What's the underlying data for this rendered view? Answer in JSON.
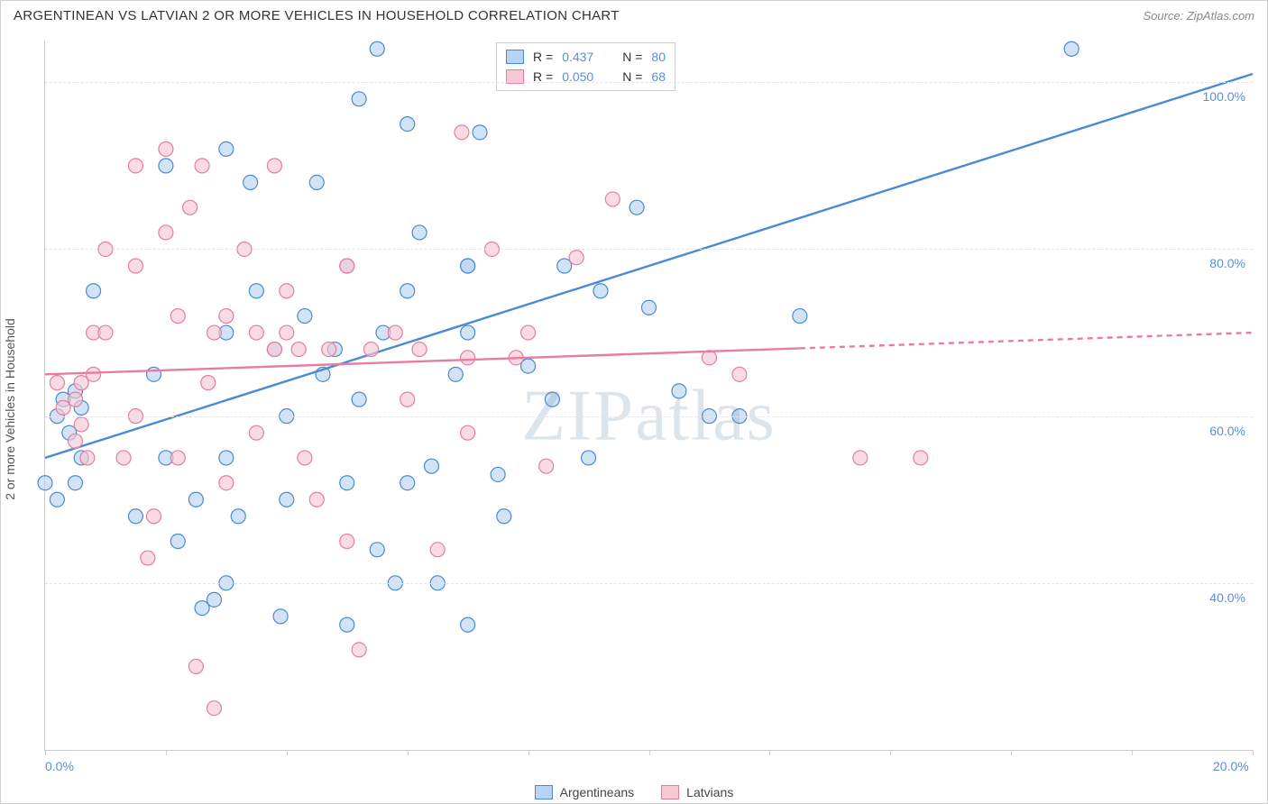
{
  "title": "ARGENTINEAN VS LATVIAN 2 OR MORE VEHICLES IN HOUSEHOLD CORRELATION CHART",
  "source": "Source: ZipAtlas.com",
  "y_axis_label": "2 or more Vehicles in Household",
  "watermark": "ZIPatlas",
  "chart": {
    "type": "scatter",
    "xlim": [
      0,
      20
    ],
    "ylim": [
      20,
      105
    ],
    "x_ticks": [
      0,
      2,
      4,
      6,
      8,
      10,
      12,
      14,
      16,
      18,
      20
    ],
    "x_tick_labels": {
      "0": "0.0%",
      "20": "20.0%"
    },
    "y_ticks": [
      40,
      60,
      80,
      100
    ],
    "y_tick_labels": [
      "40.0%",
      "60.0%",
      "80.0%",
      "100.0%"
    ],
    "grid_color": "#e5e5e5",
    "background_color": "#ffffff",
    "axis_color": "#cccccc",
    "tick_label_color": "#5a8fd8",
    "series": [
      {
        "name": "Argentineans",
        "fill": "#b8d4f0",
        "stroke": "#4a8ad4",
        "fill_opacity": 0.65,
        "marker_r": 8,
        "points": [
          [
            0.2,
            60
          ],
          [
            0.3,
            62
          ],
          [
            0.4,
            58
          ],
          [
            0.5,
            63
          ],
          [
            0.6,
            61
          ],
          [
            0.5,
            52
          ],
          [
            0.6,
            55
          ],
          [
            0.2,
            50
          ],
          [
            0.0,
            52
          ],
          [
            0.8,
            75
          ],
          [
            1.5,
            48
          ],
          [
            1.8,
            65
          ],
          [
            2.0,
            90
          ],
          [
            2.0,
            55
          ],
          [
            2.2,
            45
          ],
          [
            2.5,
            50
          ],
          [
            2.6,
            37
          ],
          [
            2.8,
            38
          ],
          [
            3.0,
            92
          ],
          [
            3.0,
            70
          ],
          [
            3.0,
            55
          ],
          [
            3.0,
            40
          ],
          [
            3.2,
            48
          ],
          [
            3.4,
            88
          ],
          [
            3.5,
            75
          ],
          [
            3.8,
            68
          ],
          [
            3.9,
            36
          ],
          [
            4.0,
            60
          ],
          [
            4.0,
            50
          ],
          [
            4.3,
            72
          ],
          [
            4.5,
            88
          ],
          [
            4.6,
            65
          ],
          [
            4.8,
            68
          ],
          [
            5.0,
            35
          ],
          [
            5.0,
            78
          ],
          [
            5.0,
            52
          ],
          [
            5.2,
            98
          ],
          [
            5.2,
            62
          ],
          [
            5.5,
            44
          ],
          [
            5.5,
            104
          ],
          [
            5.6,
            70
          ],
          [
            5.8,
            40
          ],
          [
            6.0,
            75
          ],
          [
            6.0,
            52
          ],
          [
            6.0,
            95
          ],
          [
            6.2,
            82
          ],
          [
            6.4,
            54
          ],
          [
            6.5,
            40
          ],
          [
            6.8,
            65
          ],
          [
            7.0,
            78
          ],
          [
            7.0,
            78
          ],
          [
            7.0,
            70
          ],
          [
            7.0,
            35
          ],
          [
            7.2,
            94
          ],
          [
            7.5,
            53
          ],
          [
            7.6,
            48
          ],
          [
            8.0,
            66
          ],
          [
            8.4,
            62
          ],
          [
            8.6,
            78
          ],
          [
            9.0,
            55
          ],
          [
            9.2,
            75
          ],
          [
            9.8,
            85
          ],
          [
            10.0,
            73
          ],
          [
            10.5,
            63
          ],
          [
            11.0,
            60
          ],
          [
            11.5,
            60
          ],
          [
            12.5,
            72
          ],
          [
            17.0,
            104
          ]
        ],
        "trend": {
          "x1": 0,
          "y1": 55,
          "x2": 20,
          "y2": 101,
          "solid_until_x": 20
        }
      },
      {
        "name": "Latvians",
        "fill": "#f5c8d4",
        "stroke": "#e87ca0",
        "fill_opacity": 0.65,
        "marker_r": 8,
        "points": [
          [
            0.2,
            64
          ],
          [
            0.3,
            61
          ],
          [
            0.5,
            57
          ],
          [
            0.5,
            62
          ],
          [
            0.6,
            59
          ],
          [
            0.6,
            64
          ],
          [
            0.8,
            70
          ],
          [
            0.8,
            65
          ],
          [
            0.7,
            55
          ],
          [
            1.0,
            80
          ],
          [
            1.0,
            70
          ],
          [
            1.3,
            55
          ],
          [
            1.5,
            90
          ],
          [
            1.5,
            78
          ],
          [
            1.5,
            60
          ],
          [
            1.7,
            43
          ],
          [
            1.8,
            48
          ],
          [
            2.0,
            92
          ],
          [
            2.0,
            82
          ],
          [
            2.2,
            72
          ],
          [
            2.2,
            55
          ],
          [
            2.4,
            85
          ],
          [
            2.5,
            30
          ],
          [
            2.6,
            90
          ],
          [
            2.7,
            64
          ],
          [
            2.8,
            70
          ],
          [
            2.8,
            25
          ],
          [
            3.0,
            72
          ],
          [
            3.0,
            52
          ],
          [
            3.3,
            80
          ],
          [
            3.5,
            70
          ],
          [
            3.5,
            58
          ],
          [
            3.8,
            68
          ],
          [
            3.8,
            90
          ],
          [
            4.0,
            75
          ],
          [
            4.3,
            55
          ],
          [
            4.0,
            70
          ],
          [
            4.2,
            68
          ],
          [
            4.5,
            50
          ],
          [
            4.7,
            68
          ],
          [
            5.0,
            78
          ],
          [
            5.0,
            45
          ],
          [
            5.2,
            32
          ],
          [
            5.4,
            68
          ],
          [
            5.8,
            70
          ],
          [
            6.0,
            62
          ],
          [
            6.2,
            68
          ],
          [
            6.5,
            44
          ],
          [
            6.9,
            94
          ],
          [
            7.0,
            58
          ],
          [
            7.0,
            67
          ],
          [
            7.4,
            80
          ],
          [
            7.8,
            67
          ],
          [
            8.0,
            70
          ],
          [
            8.3,
            54
          ],
          [
            8.8,
            79
          ],
          [
            9.4,
            86
          ],
          [
            11.0,
            67
          ],
          [
            11.5,
            65
          ],
          [
            13.5,
            55
          ],
          [
            14.5,
            55
          ]
        ],
        "trend": {
          "x1": 0,
          "y1": 65,
          "x2": 20,
          "y2": 70,
          "solid_until_x": 12.5
        }
      }
    ]
  },
  "legend_top": [
    {
      "swatch_fill": "#b8d4f0",
      "swatch_stroke": "#4a8ad4",
      "r_label": "R =",
      "r_val": "0.437",
      "n_label": "N =",
      "n_val": "80"
    },
    {
      "swatch_fill": "#f5c8d4",
      "swatch_stroke": "#e87ca0",
      "r_label": "R =",
      "r_val": "0.050",
      "n_label": "N =",
      "n_val": "68"
    }
  ],
  "legend_bottom": [
    {
      "swatch_fill": "#b8d4f0",
      "swatch_stroke": "#4a8ad4",
      "label": "Argentineans"
    },
    {
      "swatch_fill": "#f5c8d4",
      "swatch_stroke": "#e87ca0",
      "label": "Latvians"
    }
  ]
}
